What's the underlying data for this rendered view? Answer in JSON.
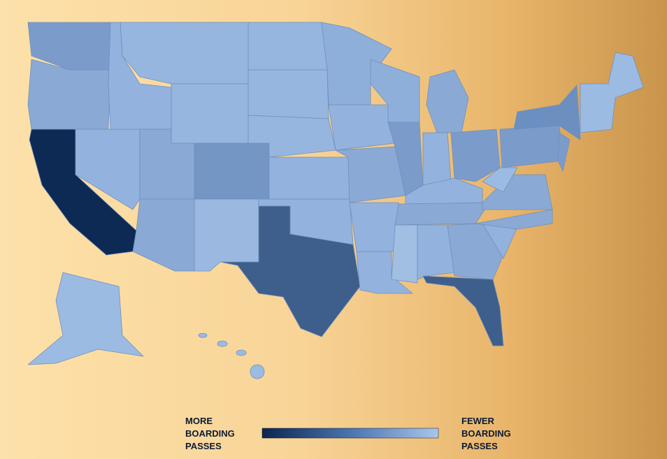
{
  "legend": {
    "more_label": [
      "MORE",
      "BOARDING",
      "PASSES"
    ],
    "fewer_label": [
      "FEWER",
      "BOARDING",
      "PASSES"
    ]
  }
}
